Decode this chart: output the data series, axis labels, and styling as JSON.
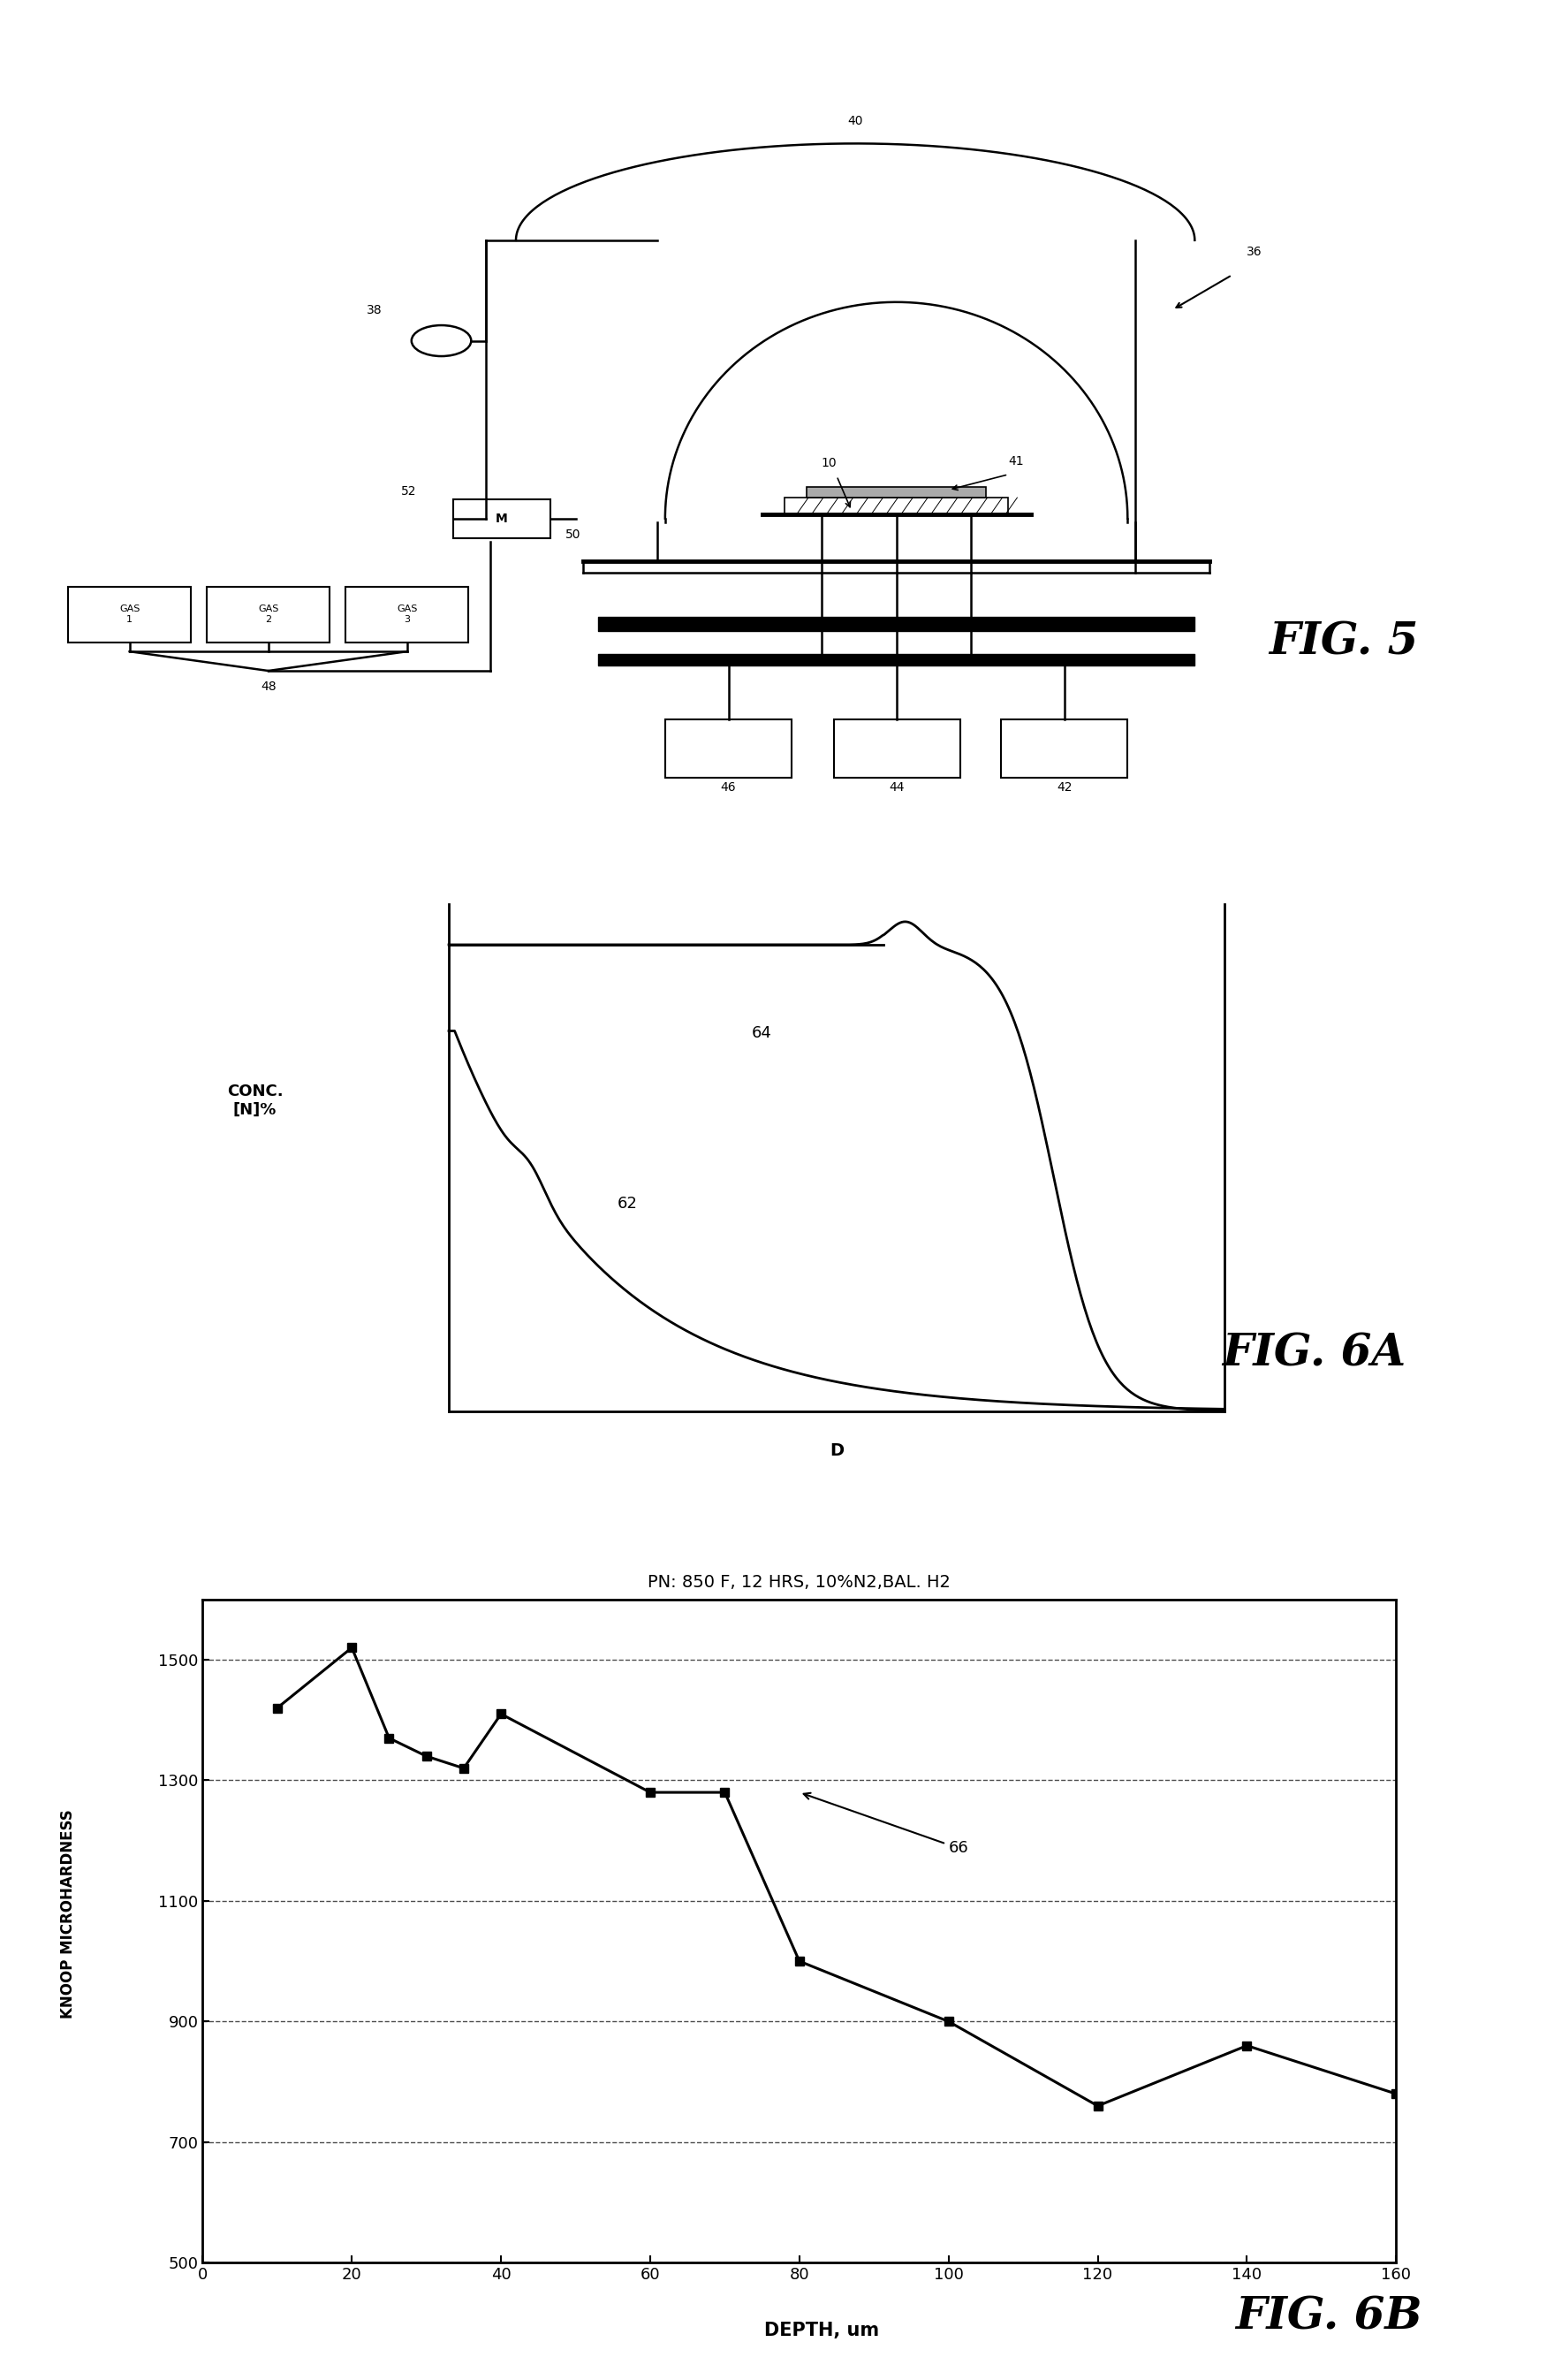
{
  "fig6a_ylabel": "CONC.\n[N]%",
  "fig6a_xlabel": "D",
  "fig6a_label62": "62",
  "fig6a_label64": "64",
  "fig6b_title": "PN: 850 F, 12 HRS, 10%N2,BAL. H2",
  "fig6b_ylabel": "KNOOP MICROHARDNESS",
  "fig6b_xlabel": "DEPTH, um",
  "fig6b_label66": "66",
  "fig6b_x": [
    10,
    20,
    25,
    30,
    35,
    40,
    60,
    70,
    80,
    100,
    120,
    140,
    160
  ],
  "fig6b_y": [
    1420,
    1520,
    1370,
    1340,
    1320,
    1410,
    1280,
    1280,
    1000,
    900,
    760,
    860,
    780
  ],
  "fig6b_xlim": [
    0,
    160
  ],
  "fig6b_ylim": [
    500,
    1600
  ],
  "fig6b_xticks": [
    0,
    20,
    40,
    60,
    80,
    100,
    120,
    140,
    160
  ],
  "fig6b_yticks": [
    500,
    700,
    900,
    1100,
    1300,
    1500
  ],
  "fig_label_fontsize": 36,
  "fig_label_style": "italic",
  "fig_label_weight": "bold",
  "background": "#ffffff",
  "line_color": "#000000",
  "gas_labels": [
    "GAS\n1",
    "GAS\n2",
    "GAS\n3"
  ]
}
